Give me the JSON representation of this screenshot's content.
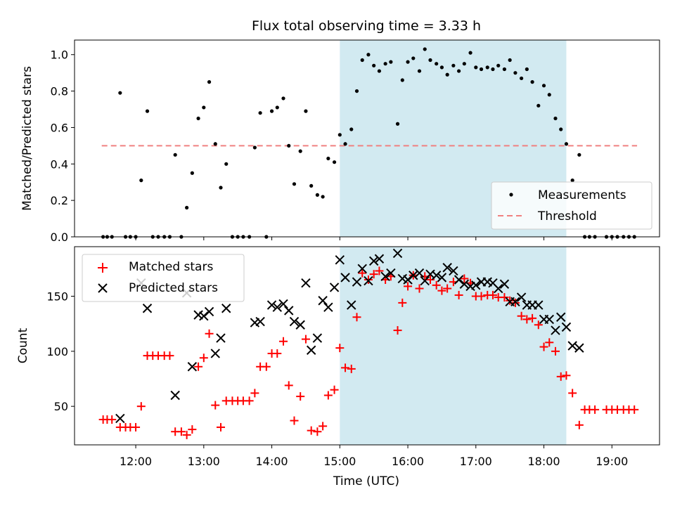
{
  "figure": {
    "title": "Flux total observing time = 3.33 h",
    "xlabel": "Time (UTC)",
    "top_ylabel": "Matched/Predicted stars",
    "bottom_ylabel": "Count"
  },
  "colors": {
    "measurement": "#000000",
    "threshold": "#f08080",
    "shade": "#add8e6",
    "matched": "#ff0000",
    "predicted": "#000000"
  },
  "chart_data": [
    {
      "type": "scatter",
      "panel": "top",
      "ylabel": "Matched/Predicted stars",
      "xlim": [
        11.1,
        19.7
      ],
      "ylim": [
        0.0,
        1.08
      ],
      "xticks": [
        12,
        13,
        14,
        15,
        16,
        17,
        18,
        19
      ],
      "xtick_labels": [
        "12:00",
        "13:00",
        "14:00",
        "15:00",
        "16:00",
        "17:00",
        "18:00",
        "19:00"
      ],
      "yticks": [
        0.0,
        0.2,
        0.4,
        0.6,
        0.8,
        1.0
      ],
      "ytick_labels": [
        "0.0",
        "0.2",
        "0.4",
        "0.6",
        "0.8",
        "1.0"
      ],
      "grid": false,
      "legend_position": "lower right",
      "shaded_span": [
        15.0,
        18.33
      ],
      "threshold": {
        "name": "Threshold",
        "y": 0.5,
        "x_range": [
          11.5,
          19.37
        ]
      },
      "series": [
        {
          "name": "Measurements",
          "x": [
            11.52,
            11.58,
            11.65,
            11.77,
            11.85,
            11.92,
            12.0,
            12.08,
            12.17,
            12.25,
            12.33,
            12.42,
            12.5,
            12.58,
            12.67,
            12.75,
            12.83,
            12.92,
            13.0,
            13.08,
            13.17,
            13.25,
            13.33,
            13.42,
            13.5,
            13.58,
            13.67,
            13.75,
            13.83,
            13.92,
            14.0,
            14.08,
            14.17,
            14.25,
            14.33,
            14.42,
            14.5,
            14.58,
            14.67,
            14.75,
            14.83,
            14.92,
            15.0,
            15.08,
            15.17,
            15.25,
            15.33,
            15.42,
            15.5,
            15.58,
            15.67,
            15.75,
            15.85,
            15.92,
            16.0,
            16.08,
            16.17,
            16.25,
            16.33,
            16.42,
            16.5,
            16.58,
            16.67,
            16.75,
            16.83,
            16.92,
            17.0,
            17.08,
            17.17,
            17.25,
            17.33,
            17.42,
            17.5,
            17.58,
            17.67,
            17.75,
            17.83,
            17.92,
            18.0,
            18.08,
            18.17,
            18.25,
            18.33,
            18.42,
            18.52,
            18.6,
            18.67,
            18.75,
            18.92,
            19.0,
            19.08,
            19.17,
            19.25,
            19.33
          ],
          "y": [
            0.0,
            0.0,
            0.0,
            0.79,
            0.0,
            0.0,
            0.0,
            0.31,
            0.69,
            0.0,
            0.0,
            0.0,
            0.0,
            0.45,
            0.0,
            0.16,
            0.35,
            0.65,
            0.71,
            0.85,
            0.51,
            0.27,
            0.4,
            0.0,
            0.0,
            0.0,
            0.0,
            0.49,
            0.68,
            0.0,
            0.69,
            0.71,
            0.76,
            0.5,
            0.29,
            0.47,
            0.69,
            0.28,
            0.23,
            0.22,
            0.43,
            0.41,
            0.56,
            0.51,
            0.59,
            0.8,
            0.97,
            1.0,
            0.94,
            0.91,
            0.95,
            0.96,
            0.62,
            0.86,
            0.96,
            0.98,
            0.91,
            1.03,
            0.97,
            0.95,
            0.93,
            0.89,
            0.94,
            0.91,
            0.95,
            1.01,
            0.93,
            0.92,
            0.93,
            0.92,
            0.94,
            0.92,
            0.97,
            0.9,
            0.87,
            0.92,
            0.85,
            0.72,
            0.83,
            0.78,
            0.65,
            0.59,
            0.51,
            0.31,
            0.45,
            0.0,
            0.0,
            0.0,
            0.0,
            0.0,
            0.0,
            0.0,
            0.0,
            0.0
          ]
        }
      ]
    },
    {
      "type": "scatter",
      "panel": "bottom",
      "ylabel": "Count",
      "xlabel": "Time (UTC)",
      "xlim": [
        11.1,
        19.7
      ],
      "ylim": [
        15,
        195
      ],
      "xticks": [
        12,
        13,
        14,
        15,
        16,
        17,
        18,
        19
      ],
      "xtick_labels": [
        "12:00",
        "13:00",
        "14:00",
        "15:00",
        "16:00",
        "17:00",
        "18:00",
        "19:00"
      ],
      "yticks": [
        50,
        100,
        150
      ],
      "ytick_labels": [
        "50",
        "100",
        "150"
      ],
      "grid": false,
      "legend_position": "upper left",
      "shaded_span": [
        15.0,
        18.33
      ],
      "series": [
        {
          "name": "Matched stars",
          "marker": "plus",
          "x": [
            11.52,
            11.58,
            11.65,
            11.77,
            11.85,
            11.92,
            12.0,
            12.08,
            12.17,
            12.25,
            12.33,
            12.42,
            12.5,
            12.58,
            12.67,
            12.75,
            12.83,
            12.92,
            13.0,
            13.08,
            13.17,
            13.25,
            13.33,
            13.42,
            13.5,
            13.58,
            13.67,
            13.75,
            13.83,
            13.92,
            14.0,
            14.08,
            14.17,
            14.25,
            14.33,
            14.42,
            14.5,
            14.58,
            14.67,
            14.75,
            14.83,
            14.92,
            15.0,
            15.08,
            15.17,
            15.25,
            15.33,
            15.42,
            15.5,
            15.58,
            15.67,
            15.75,
            15.85,
            15.92,
            16.0,
            16.08,
            16.17,
            16.25,
            16.33,
            16.42,
            16.5,
            16.58,
            16.67,
            16.75,
            16.83,
            16.92,
            17.0,
            17.08,
            17.17,
            17.25,
            17.33,
            17.42,
            17.5,
            17.58,
            17.67,
            17.75,
            17.83,
            17.92,
            18.0,
            18.08,
            18.17,
            18.25,
            18.33,
            18.42,
            18.52,
            18.6,
            18.67,
            18.75,
            18.92,
            19.0,
            19.08,
            19.17,
            19.25,
            19.33
          ],
          "y": [
            38,
            38,
            38,
            31,
            31,
            31,
            31,
            50,
            96,
            96,
            96,
            96,
            96,
            27,
            27,
            24,
            29,
            86,
            94,
            116,
            51,
            31,
            55,
            55,
            55,
            55,
            55,
            62,
            86,
            86,
            98,
            98,
            109,
            69,
            37,
            59,
            111,
            28,
            27,
            32,
            60,
            65,
            103,
            85,
            84,
            131,
            171,
            165,
            170,
            173,
            165,
            168,
            119,
            144,
            159,
            169,
            157,
            168,
            165,
            160,
            155,
            157,
            163,
            151,
            166,
            162,
            150,
            150,
            151,
            151,
            149,
            149,
            146,
            144,
            132,
            129,
            130,
            124,
            104,
            108,
            100,
            77,
            78,
            62,
            33,
            47,
            47,
            47,
            47,
            47,
            47,
            47,
            47,
            47
          ]
        },
        {
          "name": "Predicted stars",
          "marker": "x",
          "x": [
            11.77,
            12.08,
            12.17,
            12.58,
            12.75,
            12.83,
            12.92,
            13.0,
            13.08,
            13.17,
            13.25,
            13.33,
            13.75,
            13.83,
            14.0,
            14.08,
            14.17,
            14.25,
            14.33,
            14.42,
            14.5,
            14.58,
            14.67,
            14.75,
            14.83,
            14.92,
            15.0,
            15.08,
            15.17,
            15.25,
            15.33,
            15.42,
            15.5,
            15.58,
            15.67,
            15.75,
            15.85,
            15.92,
            16.0,
            16.08,
            16.17,
            16.25,
            16.33,
            16.42,
            16.5,
            16.58,
            16.67,
            16.75,
            16.83,
            16.92,
            17.0,
            17.08,
            17.17,
            17.25,
            17.33,
            17.42,
            17.5,
            17.58,
            17.67,
            17.75,
            17.83,
            17.92,
            18.0,
            18.08,
            18.17,
            18.25,
            18.33,
            18.42,
            18.52
          ],
          "y": [
            39,
            162,
            139,
            60,
            153,
            86,
            133,
            132,
            136,
            98,
            112,
            139,
            126,
            127,
            142,
            140,
            143,
            137,
            127,
            124,
            162,
            101,
            112,
            146,
            140,
            158,
            183,
            167,
            142,
            163,
            175,
            164,
            182,
            184,
            168,
            171,
            189,
            166,
            165,
            169,
            171,
            164,
            170,
            169,
            167,
            176,
            173,
            165,
            161,
            159,
            160,
            163,
            163,
            162,
            157,
            161,
            145,
            145,
            149,
            142,
            142,
            142,
            129,
            129,
            119,
            131,
            122,
            105,
            103
          ]
        }
      ]
    }
  ]
}
